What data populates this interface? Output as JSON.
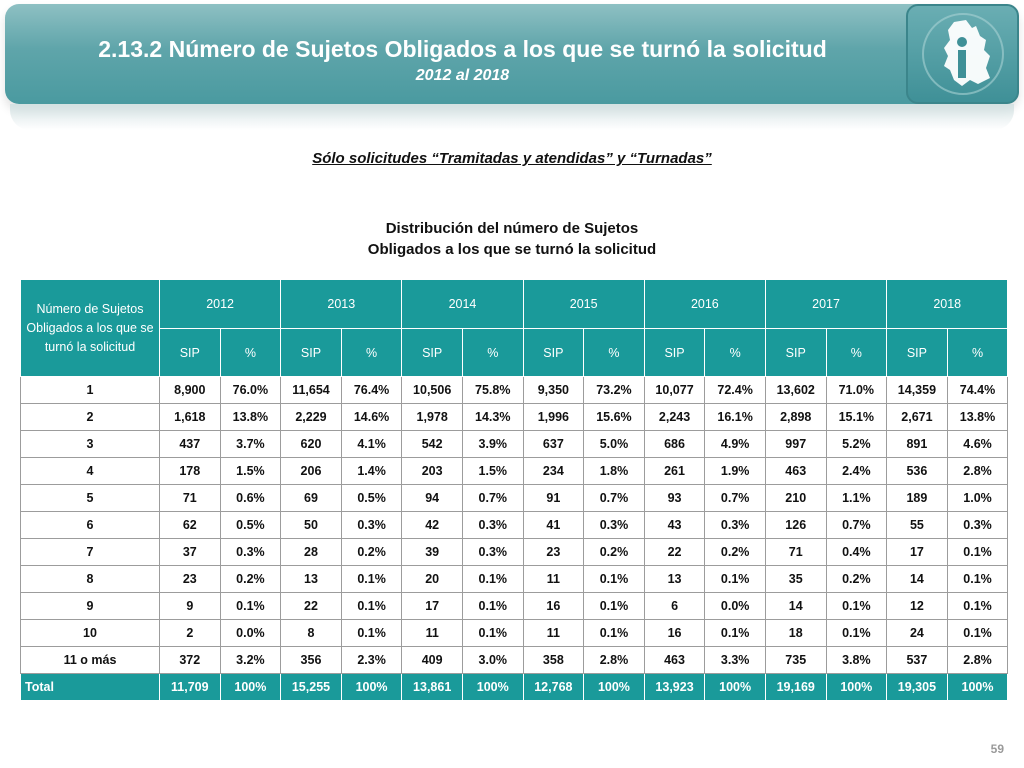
{
  "header": {
    "title": "2.13.2 Número de Sujetos Obligados a los que se turnó la solicitud",
    "subtitle": "2012 al 2018",
    "logo_icon": "cdmx-map-info-icon"
  },
  "filter_note": "Sólo solicitudes “Tramitadas y atendidas” y “Turnadas”",
  "table_title": {
    "line1": "Distribución del número de Sujetos",
    "line2": "Obligados a los que se turnó la solicitud"
  },
  "table": {
    "corner_header": "Número de Sujetos Obligados a los que se turnó la solicitud",
    "years": [
      "2012",
      "2013",
      "2014",
      "2015",
      "2016",
      "2017",
      "2018"
    ],
    "sub_headers": [
      "SIP",
      "%"
    ],
    "rows": [
      {
        "label": "1",
        "cells": [
          "8,900",
          "76.0%",
          "11,654",
          "76.4%",
          "10,506",
          "75.8%",
          "9,350",
          "73.2%",
          "10,077",
          "72.4%",
          "13,602",
          "71.0%",
          "14,359",
          "74.4%"
        ]
      },
      {
        "label": "2",
        "cells": [
          "1,618",
          "13.8%",
          "2,229",
          "14.6%",
          "1,978",
          "14.3%",
          "1,996",
          "15.6%",
          "2,243",
          "16.1%",
          "2,898",
          "15.1%",
          "2,671",
          "13.8%"
        ]
      },
      {
        "label": "3",
        "cells": [
          "437",
          "3.7%",
          "620",
          "4.1%",
          "542",
          "3.9%",
          "637",
          "5.0%",
          "686",
          "4.9%",
          "997",
          "5.2%",
          "891",
          "4.6%"
        ]
      },
      {
        "label": "4",
        "cells": [
          "178",
          "1.5%",
          "206",
          "1.4%",
          "203",
          "1.5%",
          "234",
          "1.8%",
          "261",
          "1.9%",
          "463",
          "2.4%",
          "536",
          "2.8%"
        ]
      },
      {
        "label": "5",
        "cells": [
          "71",
          "0.6%",
          "69",
          "0.5%",
          "94",
          "0.7%",
          "91",
          "0.7%",
          "93",
          "0.7%",
          "210",
          "1.1%",
          "189",
          "1.0%"
        ]
      },
      {
        "label": "6",
        "cells": [
          "62",
          "0.5%",
          "50",
          "0.3%",
          "42",
          "0.3%",
          "41",
          "0.3%",
          "43",
          "0.3%",
          "126",
          "0.7%",
          "55",
          "0.3%"
        ]
      },
      {
        "label": "7",
        "cells": [
          "37",
          "0.3%",
          "28",
          "0.2%",
          "39",
          "0.3%",
          "23",
          "0.2%",
          "22",
          "0.2%",
          "71",
          "0.4%",
          "17",
          "0.1%"
        ]
      },
      {
        "label": "8",
        "cells": [
          "23",
          "0.2%",
          "13",
          "0.1%",
          "20",
          "0.1%",
          "11",
          "0.1%",
          "13",
          "0.1%",
          "35",
          "0.2%",
          "14",
          "0.1%"
        ]
      },
      {
        "label": "9",
        "cells": [
          "9",
          "0.1%",
          "22",
          "0.1%",
          "17",
          "0.1%",
          "16",
          "0.1%",
          "6",
          "0.0%",
          "14",
          "0.1%",
          "12",
          "0.1%"
        ]
      },
      {
        "label": "10",
        "cells": [
          "2",
          "0.0%",
          "8",
          "0.1%",
          "11",
          "0.1%",
          "11",
          "0.1%",
          "16",
          "0.1%",
          "18",
          "0.1%",
          "24",
          "0.1%"
        ]
      },
      {
        "label": "11 o más",
        "cells": [
          "372",
          "3.2%",
          "356",
          "2.3%",
          "409",
          "3.0%",
          "358",
          "2.8%",
          "463",
          "3.3%",
          "735",
          "3.8%",
          "537",
          "2.8%"
        ]
      }
    ],
    "total": {
      "label": "Total",
      "cells": [
        "11,709",
        "100%",
        "15,255",
        "100%",
        "13,861",
        "100%",
        "12,768",
        "100%",
        "13,923",
        "100%",
        "19,169",
        "100%",
        "19,305",
        "100%"
      ]
    }
  },
  "page_number": "59",
  "colors": {
    "accent_teal": "#1a9a9a",
    "banner_teal": "#5fa5aa"
  }
}
